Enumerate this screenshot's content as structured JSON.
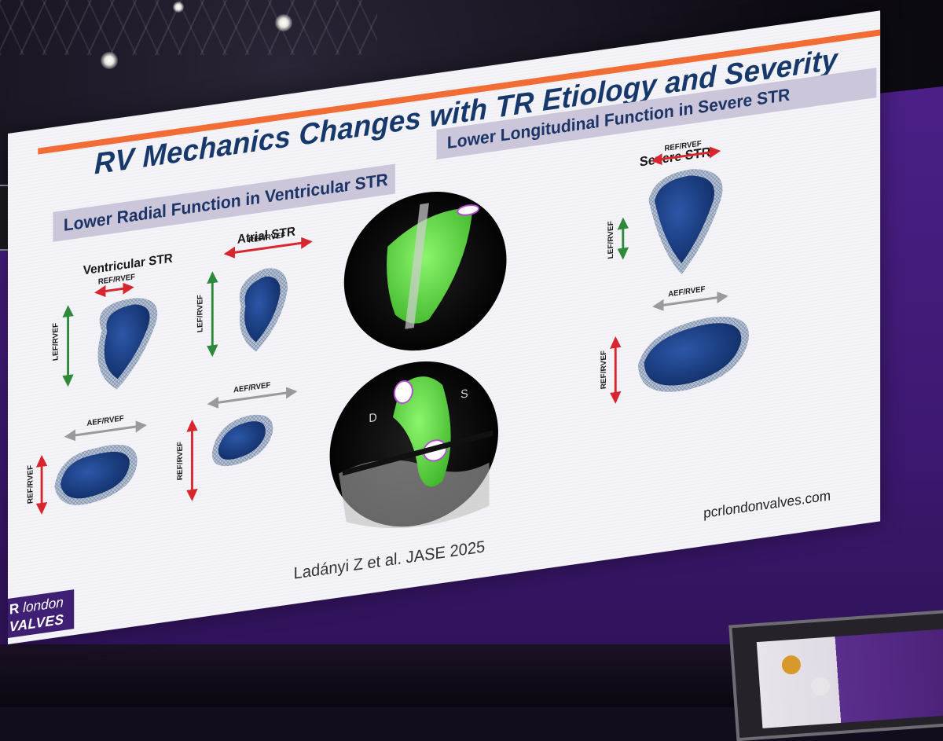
{
  "slide": {
    "title": "RV Mechanics Changes with TR Etiology and Severity",
    "left_band": "Lower Radial Function in Ventricular STR",
    "right_band": "Lower Longitudinal Function in Severe STR",
    "panels": {
      "ventricular": "Ventricular STR",
      "atrial": "Atrial STR",
      "severe": "Severe STR"
    },
    "arrow_labels": {
      "ref_rvef": "REF/RVEF",
      "lef_rvef": "LEF/RVEF",
      "aef_rvef": "AEF/RVEF"
    },
    "echo_labels": {
      "d": "D",
      "s": "S"
    },
    "citation": "Ladányi Z et al. JASE 2025",
    "website": "pcrlondonvalves.com",
    "logo": {
      "r": "R",
      "london": "london",
      "valves": "VALVES"
    }
  },
  "colors": {
    "accent_bar": "#f26d36",
    "title": "#16386b",
    "band": "#cbc6da",
    "arrow_red": "#d8262e",
    "arrow_green": "#2e8a3a",
    "arrow_gray": "#9a9a9a",
    "ventricle_blue": "#1b3f86",
    "echo_green": "#6ee64a",
    "screen_purple": "#4b1f86"
  }
}
